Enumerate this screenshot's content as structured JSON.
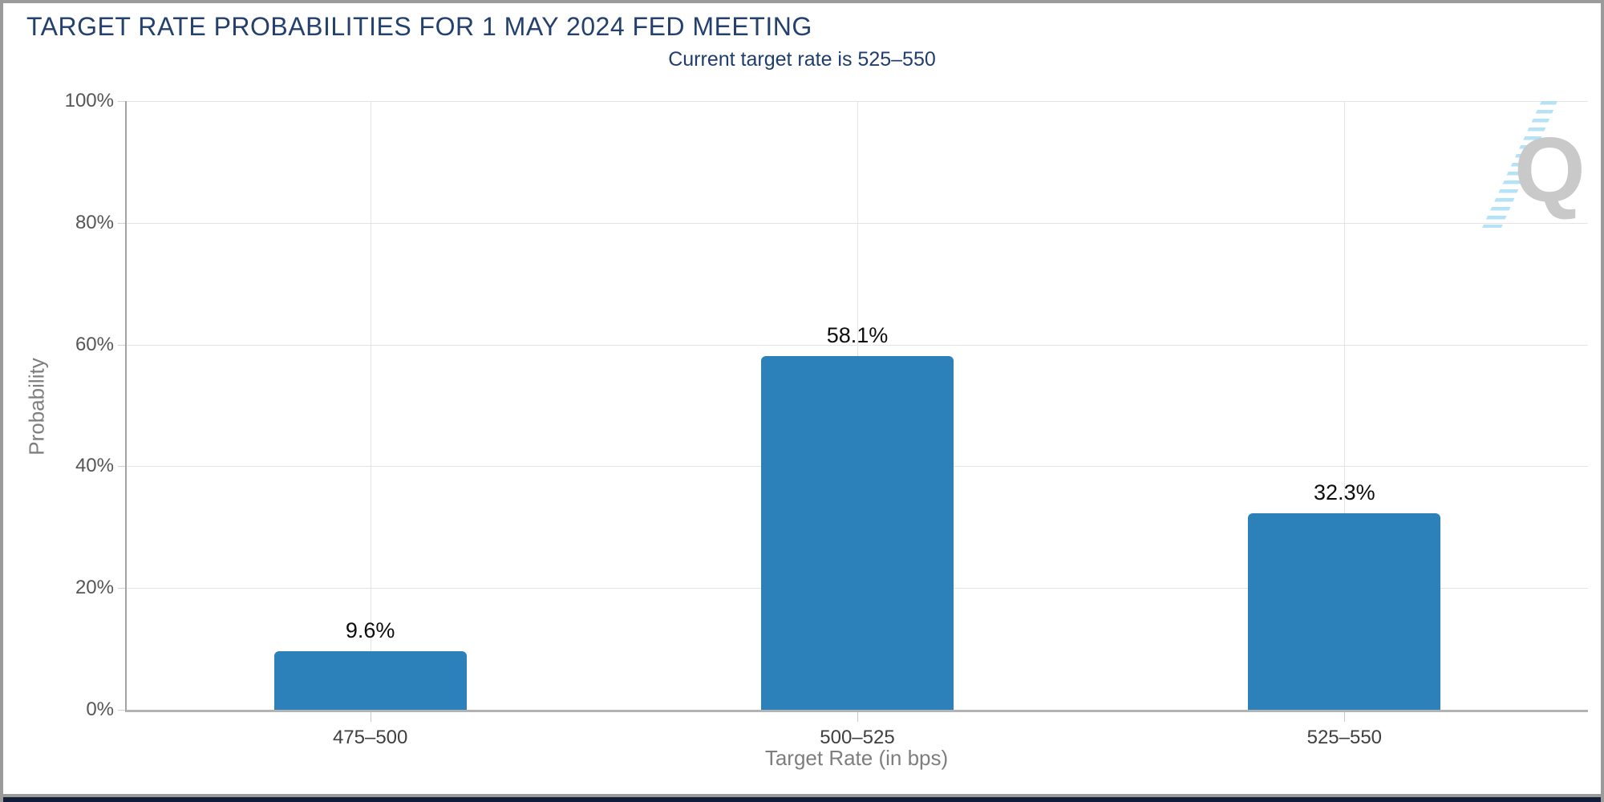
{
  "chart_data": {
    "type": "bar",
    "title": "TARGET RATE PROBABILITIES FOR 1 MAY 2024 FED MEETING",
    "subtitle": "Current target rate is 525–550",
    "categories": [
      "475–500",
      "500–525",
      "525–550"
    ],
    "values": [
      9.6,
      58.1,
      32.3
    ],
    "value_labels": [
      "9.6%",
      "58.1%",
      "32.3%"
    ],
    "xlabel": "Target Rate (in bps)",
    "ylabel": "Probability",
    "ylim": [
      0,
      100
    ],
    "ytick_labels": [
      "0%",
      "20%",
      "40%",
      "60%",
      "80%",
      "100%"
    ],
    "grid": true,
    "legend": "none",
    "bar_color": "#2d81ba"
  },
  "watermark": {
    "letter": "Q"
  },
  "colors": {
    "title_navy": "#24406e",
    "subtitle_navy": "#1f3d6d",
    "bar_blue": "#2d81ba",
    "gridline": "#e4e4e4",
    "footer_navy": "#121d38"
  }
}
